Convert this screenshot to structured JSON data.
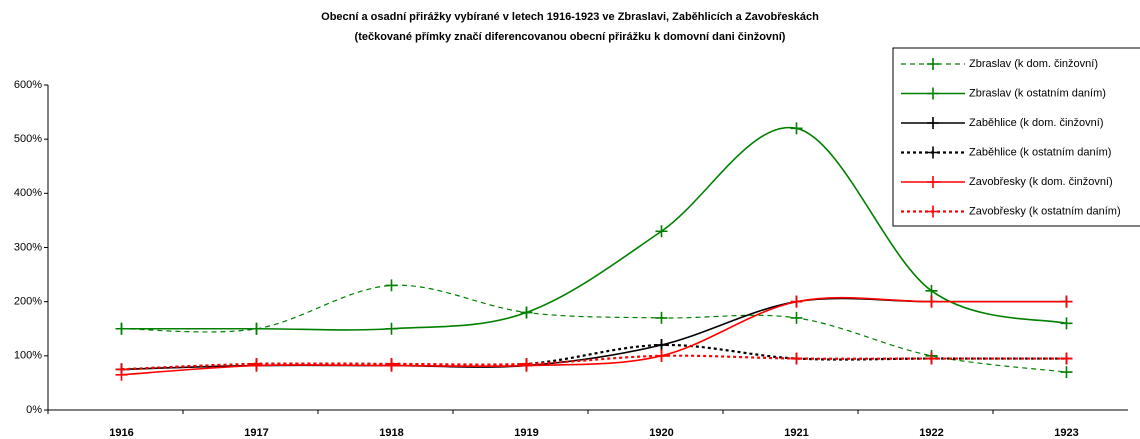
{
  "chart_data": {
    "type": "line",
    "title": "Obecní a osadní přirážky vybírané v letech 1916-1923 ve Zbraslavi, Zaběhlicích a Zavobřeskách",
    "subtitle": "(tečkované přímky značí diferencovanou obecní přirážku k domovní dani činžovní)",
    "categories": [
      "1916",
      "1917",
      "1918",
      "1919",
      "1920",
      "1921",
      "1922",
      "1923"
    ],
    "series": [
      {
        "name": "Zbraslav (k dom. činžovní)",
        "color": "#008000",
        "dash": "5,4",
        "values": [
          150,
          150,
          230,
          180,
          170,
          170,
          100,
          70
        ]
      },
      {
        "name": "Zbraslav (k ostatním daním)",
        "color": "#008000",
        "dash": "none",
        "values": [
          150,
          150,
          150,
          180,
          330,
          520,
          220,
          160
        ]
      },
      {
        "name": "Zaběhlice (k dom. činžovní)",
        "color": "#000000",
        "dash": "none",
        "values": [
          75,
          82,
          82,
          82,
          120,
          200,
          200,
          200
        ]
      },
      {
        "name": "Zaběhlice (k ostatním daním)",
        "color": "#000000",
        "dash": "3,3",
        "values": [
          75,
          85,
          85,
          85,
          120,
          95,
          95,
          95
        ]
      },
      {
        "name": "Zavobřesky (k dom. činžovní)",
        "color": "#ff0000",
        "dash": "none",
        "values": [
          65,
          82,
          82,
          82,
          100,
          200,
          200,
          200
        ]
      },
      {
        "name": "Zavobřesky (k ostatním daním)",
        "color": "#ff0000",
        "dash": "3,3",
        "values": [
          75,
          85,
          85,
          85,
          100,
          95,
          95,
          95
        ]
      }
    ],
    "ylim": [
      0,
      600
    ],
    "yticks": [
      {
        "value": 0,
        "label": "0%"
      },
      {
        "value": 100,
        "label": "100%"
      },
      {
        "value": 200,
        "label": "200%"
      },
      {
        "value": 300,
        "label": "300%"
      },
      {
        "value": 400,
        "label": "400%"
      },
      {
        "value": 500,
        "label": "500%"
      },
      {
        "value": 600,
        "label": "600%"
      }
    ],
    "legend": "top-right"
  }
}
